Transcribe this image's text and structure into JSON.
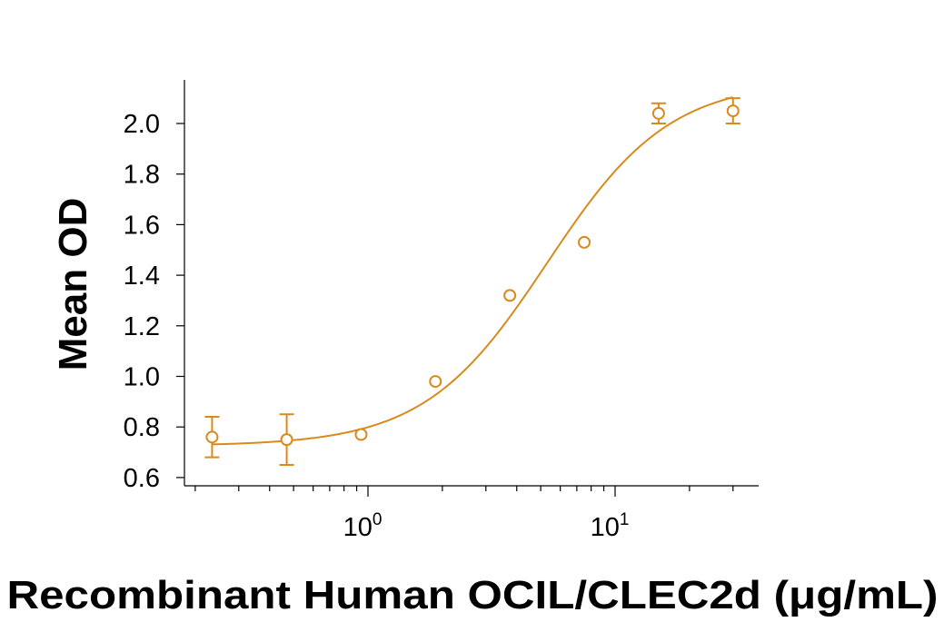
{
  "chart_data": {
    "type": "scatter",
    "xlabel": "Recombinant Human OCIL/CLEC2d (μg/mL)",
    "ylabel": "Mean OD",
    "xscale": "log",
    "xlim": [
      0.2,
      35
    ],
    "ylim": [
      0.6,
      2.1
    ],
    "yticks": [
      "0.6",
      "0.8",
      "1.0",
      "1.2",
      "1.4",
      "1.6",
      "1.8",
      "2.0"
    ],
    "xticks": [
      {
        "base": "10",
        "exp": "0",
        "value": 1
      },
      {
        "base": "10",
        "exp": "1",
        "value": 10
      }
    ],
    "color": "#d98a1c",
    "grid": false,
    "legend": "none",
    "points": [
      {
        "x": 0.234,
        "y": 0.76,
        "err": 0.08
      },
      {
        "x": 0.469,
        "y": 0.75,
        "err": 0.1
      },
      {
        "x": 0.938,
        "y": 0.77,
        "err": 0
      },
      {
        "x": 1.875,
        "y": 0.98,
        "err": 0
      },
      {
        "x": 3.75,
        "y": 1.32,
        "err": 0
      },
      {
        "x": 7.5,
        "y": 1.53,
        "err": 0
      },
      {
        "x": 15,
        "y": 2.04,
        "err": 0.04
      },
      {
        "x": 30,
        "y": 2.05,
        "err": 0.05
      }
    ],
    "fit": {
      "model": "4PL",
      "bottom": 0.725,
      "top": 2.17,
      "ec50": 5.3,
      "hill": 1.75
    }
  }
}
